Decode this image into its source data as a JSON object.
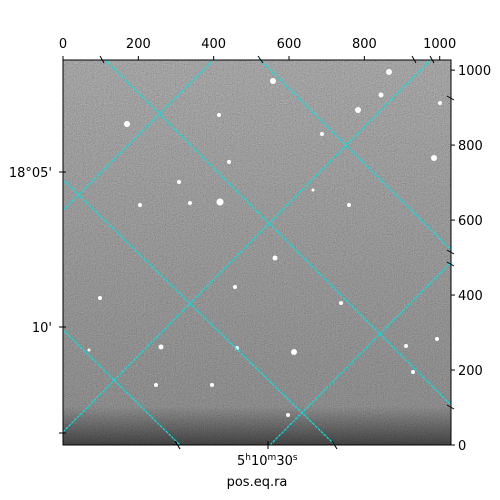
{
  "chart_data": {
    "type": "image",
    "xlabel": "pos.eq.ra",
    "xlim": [
      0,
      1030
    ],
    "ylim": [
      0,
      1027
    ],
    "xticks": [
      0,
      200,
      400,
      600,
      800,
      1000
    ],
    "yticks": [
      0,
      200,
      400,
      600,
      800,
      1000
    ],
    "dec_labels": [
      "18°05'",
      "10'"
    ],
    "ra_label": [
      "5",
      "h",
      "10",
      "m",
      "30",
      "s"
    ],
    "grid_color": "#00e5e5"
  }
}
